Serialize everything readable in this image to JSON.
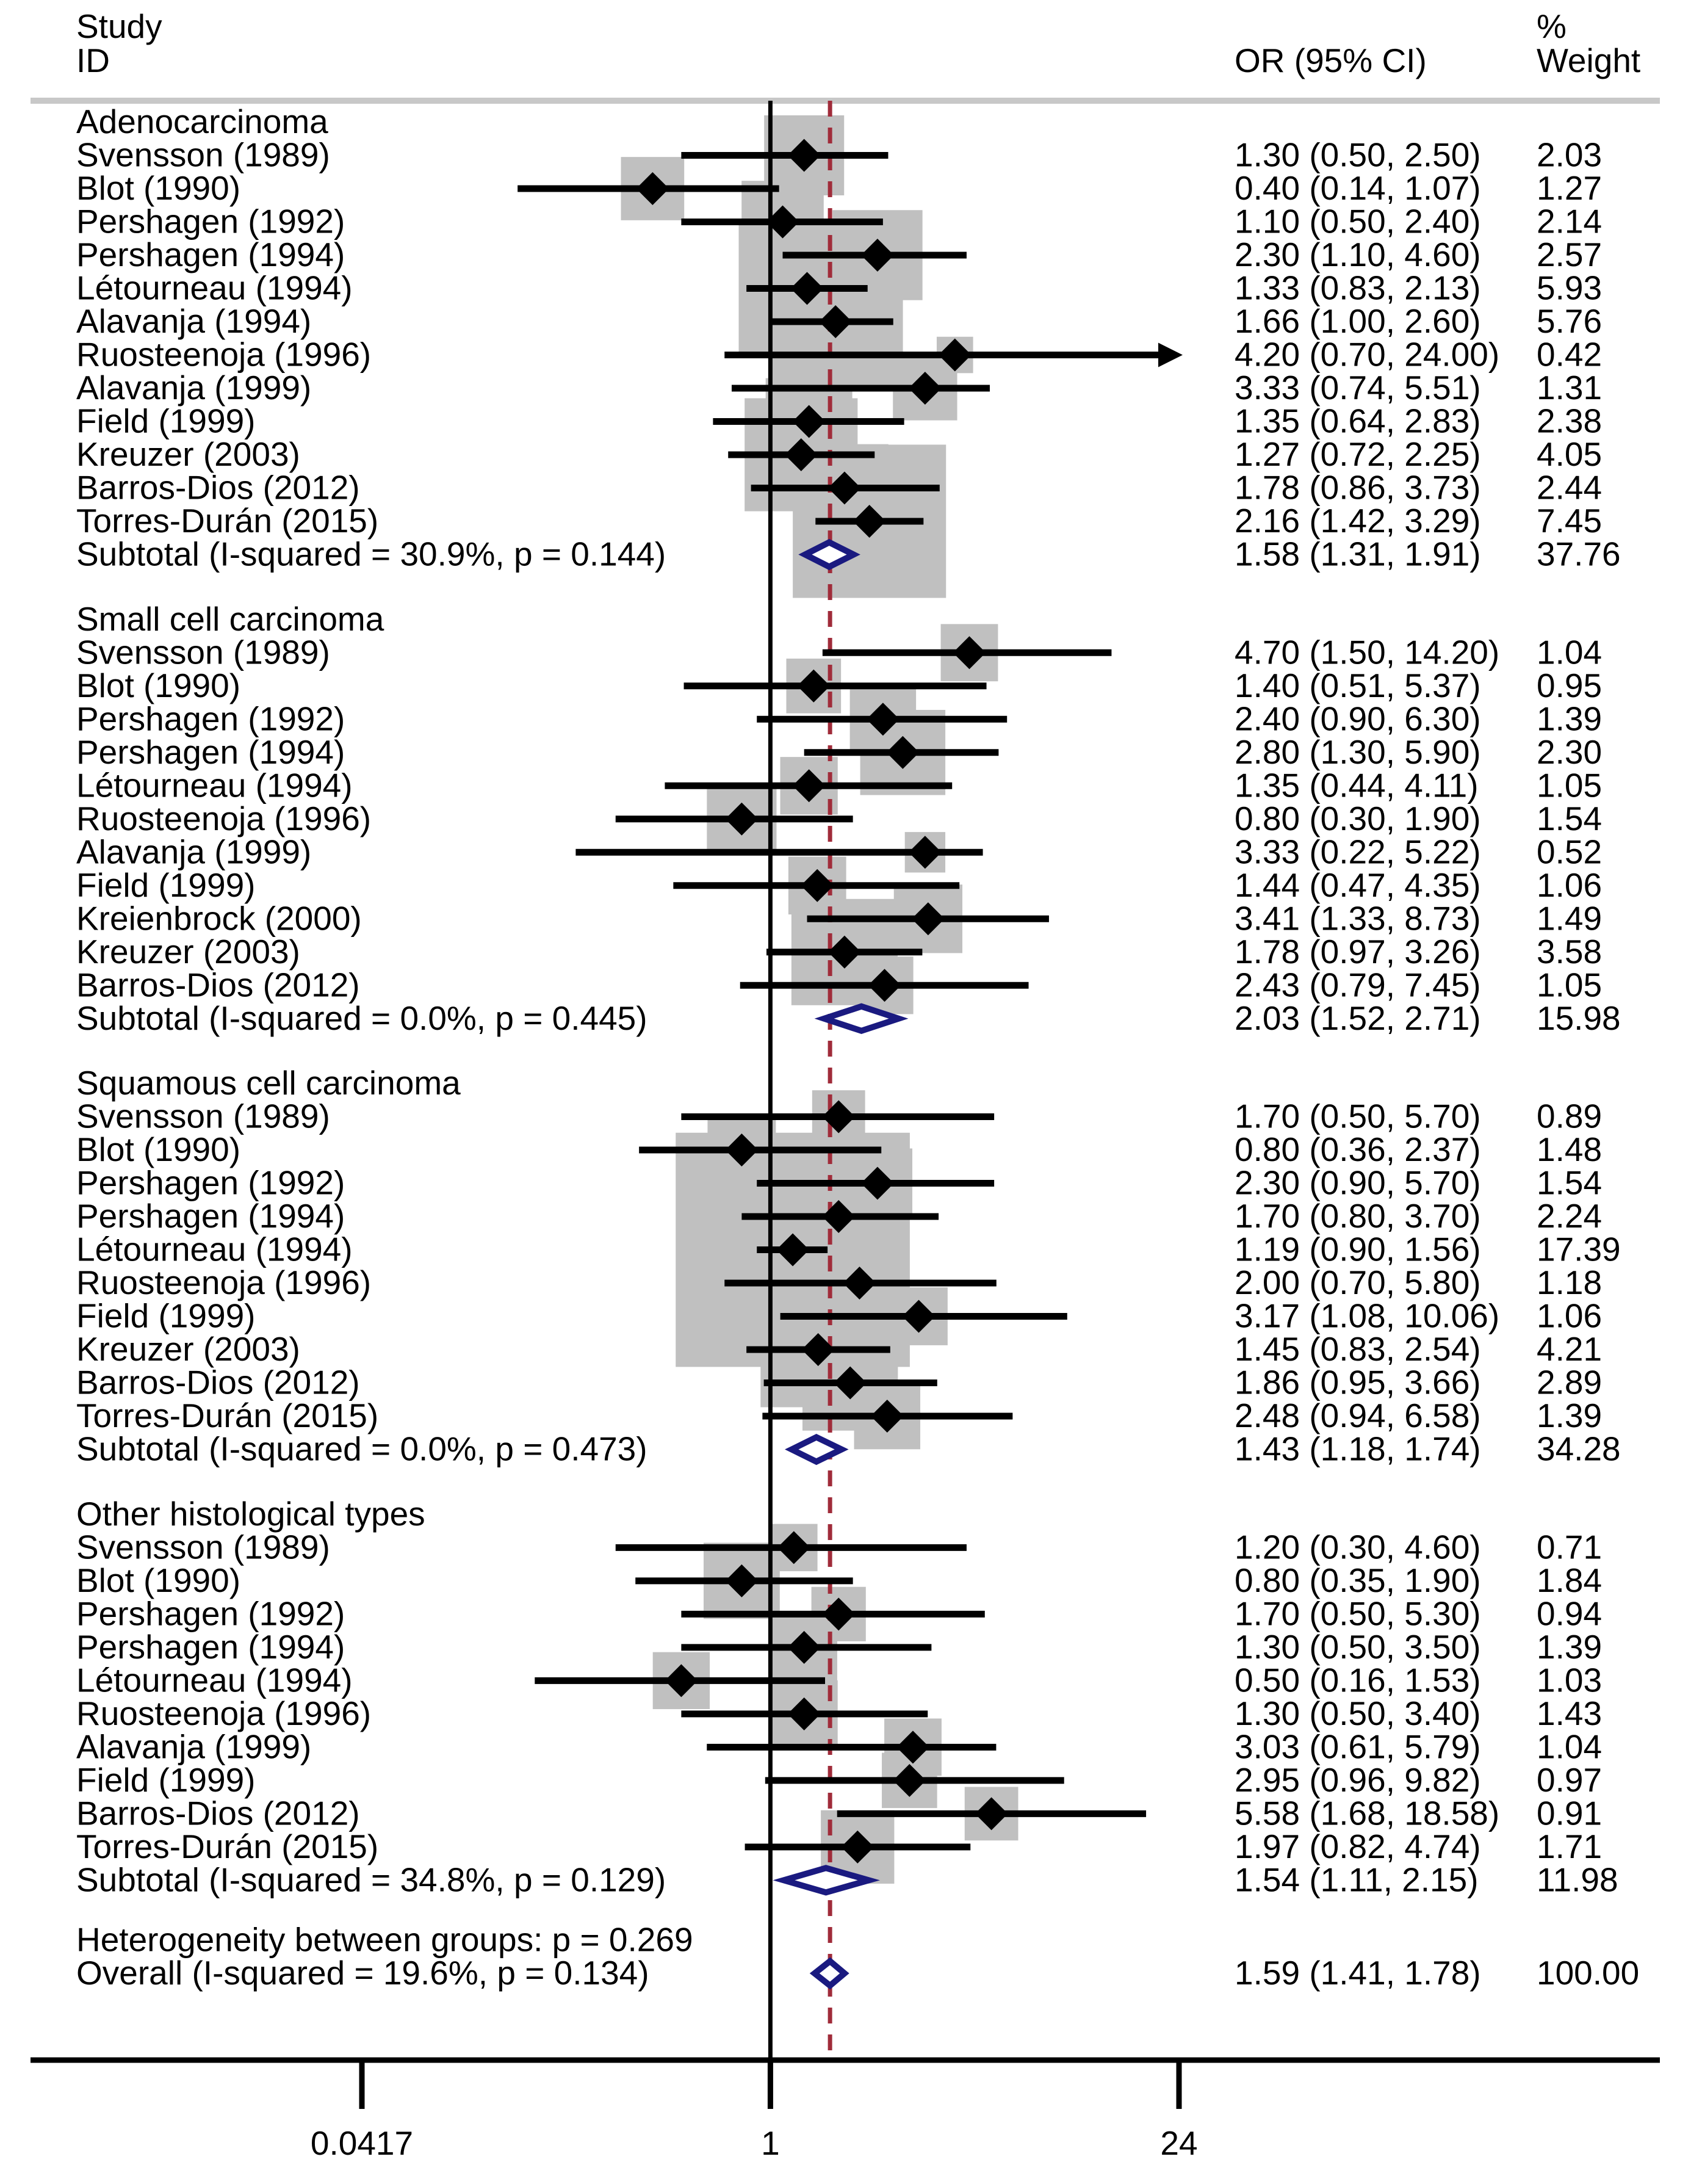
{
  "chart_data": {
    "type": "forest",
    "title": "",
    "xlabel": "",
    "scale": "log",
    "xlim": [
      0.0417,
      24
    ],
    "null_value": 1,
    "overall_line": 1.59,
    "headers": {
      "study_line1": "Study",
      "study_line2": "ID",
      "or": "OR (95% CI)",
      "weight_line1": "%",
      "weight_line2": "Weight"
    },
    "x_ticks": [
      {
        "value": 0.0417,
        "label": "0.0417"
      },
      {
        "value": 1,
        "label": "1"
      },
      {
        "value": 24,
        "label": "24"
      }
    ],
    "groups": [
      {
        "name": "Adenocarcinoma",
        "studies": [
          {
            "label": "Svensson (1989)",
            "or": 1.3,
            "lo": 0.5,
            "hi": 2.5,
            "ci_text": "1.30 (0.50, 2.50)",
            "weight": "2.03"
          },
          {
            "label": "Blot (1990)",
            "or": 0.4,
            "lo": 0.14,
            "hi": 1.07,
            "ci_text": "0.40 (0.14, 1.07)",
            "weight": "1.27"
          },
          {
            "label": "Pershagen (1992)",
            "or": 1.1,
            "lo": 0.5,
            "hi": 2.4,
            "ci_text": "1.10 (0.50, 2.40)",
            "weight": "2.14"
          },
          {
            "label": "Pershagen (1994)",
            "or": 2.3,
            "lo": 1.1,
            "hi": 4.6,
            "ci_text": "2.30 (1.10, 4.60)",
            "weight": "2.57"
          },
          {
            "label": "Létourneau (1994)",
            "or": 1.33,
            "lo": 0.83,
            "hi": 2.13,
            "ci_text": "1.33 (0.83, 2.13)",
            "weight": "5.93"
          },
          {
            "label": "Alavanja (1994)",
            "or": 1.66,
            "lo": 1.0,
            "hi": 2.6,
            "ci_text": "1.66 (1.00, 2.60)",
            "weight": "5.76"
          },
          {
            "label": "Ruosteenoja (1996)",
            "or": 4.2,
            "lo": 0.7,
            "hi": 24.0,
            "ci_text": "4.20 (0.70, 24.00)",
            "weight": "0.42",
            "arrow": true
          },
          {
            "label": "Alavanja (1999)",
            "or": 3.33,
            "lo": 0.74,
            "hi": 5.51,
            "ci_text": "3.33 (0.74, 5.51)",
            "weight": "1.31"
          },
          {
            "label": "Field (1999)",
            "or": 1.35,
            "lo": 0.64,
            "hi": 2.83,
            "ci_text": "1.35 (0.64, 2.83)",
            "weight": "2.38"
          },
          {
            "label": "Kreuzer (2003)",
            "or": 1.27,
            "lo": 0.72,
            "hi": 2.25,
            "ci_text": "1.27 (0.72, 2.25)",
            "weight": "4.05"
          },
          {
            "label": "Barros-Dios (2012)",
            "or": 1.78,
            "lo": 0.86,
            "hi": 3.73,
            "ci_text": "1.78 (0.86, 3.73)",
            "weight": "2.44"
          },
          {
            "label": "Torres-Durán (2015)",
            "or": 2.16,
            "lo": 1.42,
            "hi": 3.29,
            "ci_text": "2.16 (1.42, 3.29)",
            "weight": "7.45"
          }
        ],
        "subtotal": {
          "label": "Subtotal  (I-squared = 30.9%, p = 0.144)",
          "or": 1.58,
          "lo": 1.31,
          "hi": 1.91,
          "ci_text": "1.58 (1.31, 1.91)",
          "weight": "37.76"
        }
      },
      {
        "name": "Small cell carcinoma",
        "studies": [
          {
            "label": "Svensson (1989)",
            "or": 4.7,
            "lo": 1.5,
            "hi": 14.2,
            "ci_text": "4.70 (1.50, 14.20)",
            "weight": "1.04"
          },
          {
            "label": "Blot (1990)",
            "or": 1.4,
            "lo": 0.51,
            "hi": 5.37,
            "ci_text": "1.40 (0.51, 5.37)",
            "weight": "0.95"
          },
          {
            "label": "Pershagen (1992)",
            "or": 2.4,
            "lo": 0.9,
            "hi": 6.3,
            "ci_text": "2.40 (0.90, 6.30)",
            "weight": "1.39"
          },
          {
            "label": "Pershagen (1994)",
            "or": 2.8,
            "lo": 1.3,
            "hi": 5.9,
            "ci_text": "2.80 (1.30, 5.90)",
            "weight": "2.30"
          },
          {
            "label": "Létourneau (1994)",
            "or": 1.35,
            "lo": 0.44,
            "hi": 4.11,
            "ci_text": "1.35 (0.44, 4.11)",
            "weight": "1.05"
          },
          {
            "label": "Ruosteenoja (1996)",
            "or": 0.8,
            "lo": 0.3,
            "hi": 1.9,
            "ci_text": "0.80 (0.30, 1.90)",
            "weight": "1.54"
          },
          {
            "label": "Alavanja (1999)",
            "or": 3.33,
            "lo": 0.22,
            "hi": 5.22,
            "ci_text": "3.33 (0.22, 5.22)",
            "weight": "0.52"
          },
          {
            "label": "Field (1999)",
            "or": 1.44,
            "lo": 0.47,
            "hi": 4.35,
            "ci_text": "1.44 (0.47, 4.35)",
            "weight": "1.06"
          },
          {
            "label": "Kreienbrock (2000)",
            "or": 3.41,
            "lo": 1.33,
            "hi": 8.73,
            "ci_text": "3.41 (1.33, 8.73)",
            "weight": "1.49"
          },
          {
            "label": "Kreuzer (2003)",
            "or": 1.78,
            "lo": 0.97,
            "hi": 3.26,
            "ci_text": "1.78 (0.97, 3.26)",
            "weight": "3.58"
          },
          {
            "label": "Barros-Dios (2012)",
            "or": 2.43,
            "lo": 0.79,
            "hi": 7.45,
            "ci_text": "2.43 (0.79, 7.45)",
            "weight": "1.05"
          }
        ],
        "subtotal": {
          "label": "Subtotal  (I-squared = 0.0%, p = 0.445)",
          "or": 2.03,
          "lo": 1.52,
          "hi": 2.71,
          "ci_text": "2.03 (1.52, 2.71)",
          "weight": "15.98"
        }
      },
      {
        "name": "Squamous cell carcinoma",
        "studies": [
          {
            "label": "Svensson (1989)",
            "or": 1.7,
            "lo": 0.5,
            "hi": 5.7,
            "ci_text": "1.70 (0.50, 5.70)",
            "weight": "0.89"
          },
          {
            "label": "Blot (1990)",
            "or": 0.8,
            "lo": 0.36,
            "hi": 2.37,
            "ci_text": "0.80 (0.36, 2.37)",
            "weight": "1.48"
          },
          {
            "label": "Pershagen (1992)",
            "or": 2.3,
            "lo": 0.9,
            "hi": 5.7,
            "ci_text": "2.30 (0.90, 5.70)",
            "weight": "1.54"
          },
          {
            "label": "Pershagen (1994)",
            "or": 1.7,
            "lo": 0.8,
            "hi": 3.7,
            "ci_text": "1.70 (0.80, 3.70)",
            "weight": "2.24"
          },
          {
            "label": "Létourneau (1994)",
            "or": 1.19,
            "lo": 0.9,
            "hi": 1.56,
            "ci_text": "1.19 (0.90, 1.56)",
            "weight": "17.39"
          },
          {
            "label": "Ruosteenoja (1996)",
            "or": 2.0,
            "lo": 0.7,
            "hi": 5.8,
            "ci_text": "2.00 (0.70, 5.80)",
            "weight": "1.18"
          },
          {
            "label": "Field (1999)",
            "or": 3.17,
            "lo": 1.08,
            "hi": 10.06,
            "ci_text": "3.17 (1.08, 10.06)",
            "weight": "1.06"
          },
          {
            "label": "Kreuzer (2003)",
            "or": 1.45,
            "lo": 0.83,
            "hi": 2.54,
            "ci_text": "1.45 (0.83, 2.54)",
            "weight": "4.21"
          },
          {
            "label": "Barros-Dios (2012)",
            "or": 1.86,
            "lo": 0.95,
            "hi": 3.66,
            "ci_text": "1.86 (0.95, 3.66)",
            "weight": "2.89"
          },
          {
            "label": "Torres-Durán (2015)",
            "or": 2.48,
            "lo": 0.94,
            "hi": 6.58,
            "ci_text": "2.48 (0.94, 6.58)",
            "weight": "1.39"
          }
        ],
        "subtotal": {
          "label": "Subtotal  (I-squared = 0.0%, p = 0.473)",
          "or": 1.43,
          "lo": 1.18,
          "hi": 1.74,
          "ci_text": "1.43 (1.18, 1.74)",
          "weight": "34.28"
        }
      },
      {
        "name": "Other histological types",
        "studies": [
          {
            "label": "Svensson (1989)",
            "or": 1.2,
            "lo": 0.3,
            "hi": 4.6,
            "ci_text": "1.20 (0.30, 4.60)",
            "weight": "0.71"
          },
          {
            "label": "Blot (1990)",
            "or": 0.8,
            "lo": 0.35,
            "hi": 1.9,
            "ci_text": "0.80 (0.35, 1.90)",
            "weight": "1.84"
          },
          {
            "label": "Pershagen (1992)",
            "or": 1.7,
            "lo": 0.5,
            "hi": 5.3,
            "ci_text": "1.70 (0.50, 5.30)",
            "weight": "0.94"
          },
          {
            "label": "Pershagen (1994)",
            "or": 1.3,
            "lo": 0.5,
            "hi": 3.5,
            "ci_text": "1.30 (0.50, 3.50)",
            "weight": "1.39"
          },
          {
            "label": "Létourneau (1994)",
            "or": 0.5,
            "lo": 0.16,
            "hi": 1.53,
            "ci_text": "0.50 (0.16, 1.53)",
            "weight": "1.03"
          },
          {
            "label": "Ruosteenoja (1996)",
            "or": 1.3,
            "lo": 0.5,
            "hi": 3.4,
            "ci_text": "1.30 (0.50, 3.40)",
            "weight": "1.43"
          },
          {
            "label": "Alavanja (1999)",
            "or": 3.03,
            "lo": 0.61,
            "hi": 5.79,
            "ci_text": "3.03 (0.61, 5.79)",
            "weight": "1.04"
          },
          {
            "label": "Field (1999)",
            "or": 2.95,
            "lo": 0.96,
            "hi": 9.82,
            "ci_text": "2.95 (0.96, 9.82)",
            "weight": "0.97"
          },
          {
            "label": "Barros-Dios (2012)",
            "or": 5.58,
            "lo": 1.68,
            "hi": 18.58,
            "ci_text": "5.58 (1.68, 18.58)",
            "weight": "0.91"
          },
          {
            "label": "Torres-Durán (2015)",
            "or": 1.97,
            "lo": 0.82,
            "hi": 4.74,
            "ci_text": "1.97 (0.82, 4.74)",
            "weight": "1.71"
          }
        ],
        "subtotal": {
          "label": "Subtotal  (I-squared = 34.8%, p = 0.129)",
          "or": 1.54,
          "lo": 1.11,
          "hi": 2.15,
          "ci_text": "1.54 (1.11, 2.15)",
          "weight": "11.98"
        }
      }
    ],
    "heterogeneity": "Heterogeneity between groups: p = 0.269",
    "overall": {
      "label": "Overall  (I-squared = 19.6%, p = 0.134)",
      "or": 1.59,
      "lo": 1.41,
      "hi": 1.78,
      "ci_text": "1.59 (1.41, 1.78)",
      "weight": "100.00"
    }
  },
  "colors": {
    "point": "#000000",
    "box": "#c0c0c0",
    "diamond": "#1a1a80",
    "overall_line": "#a02c3a",
    "rule": "#c8c8c8"
  }
}
